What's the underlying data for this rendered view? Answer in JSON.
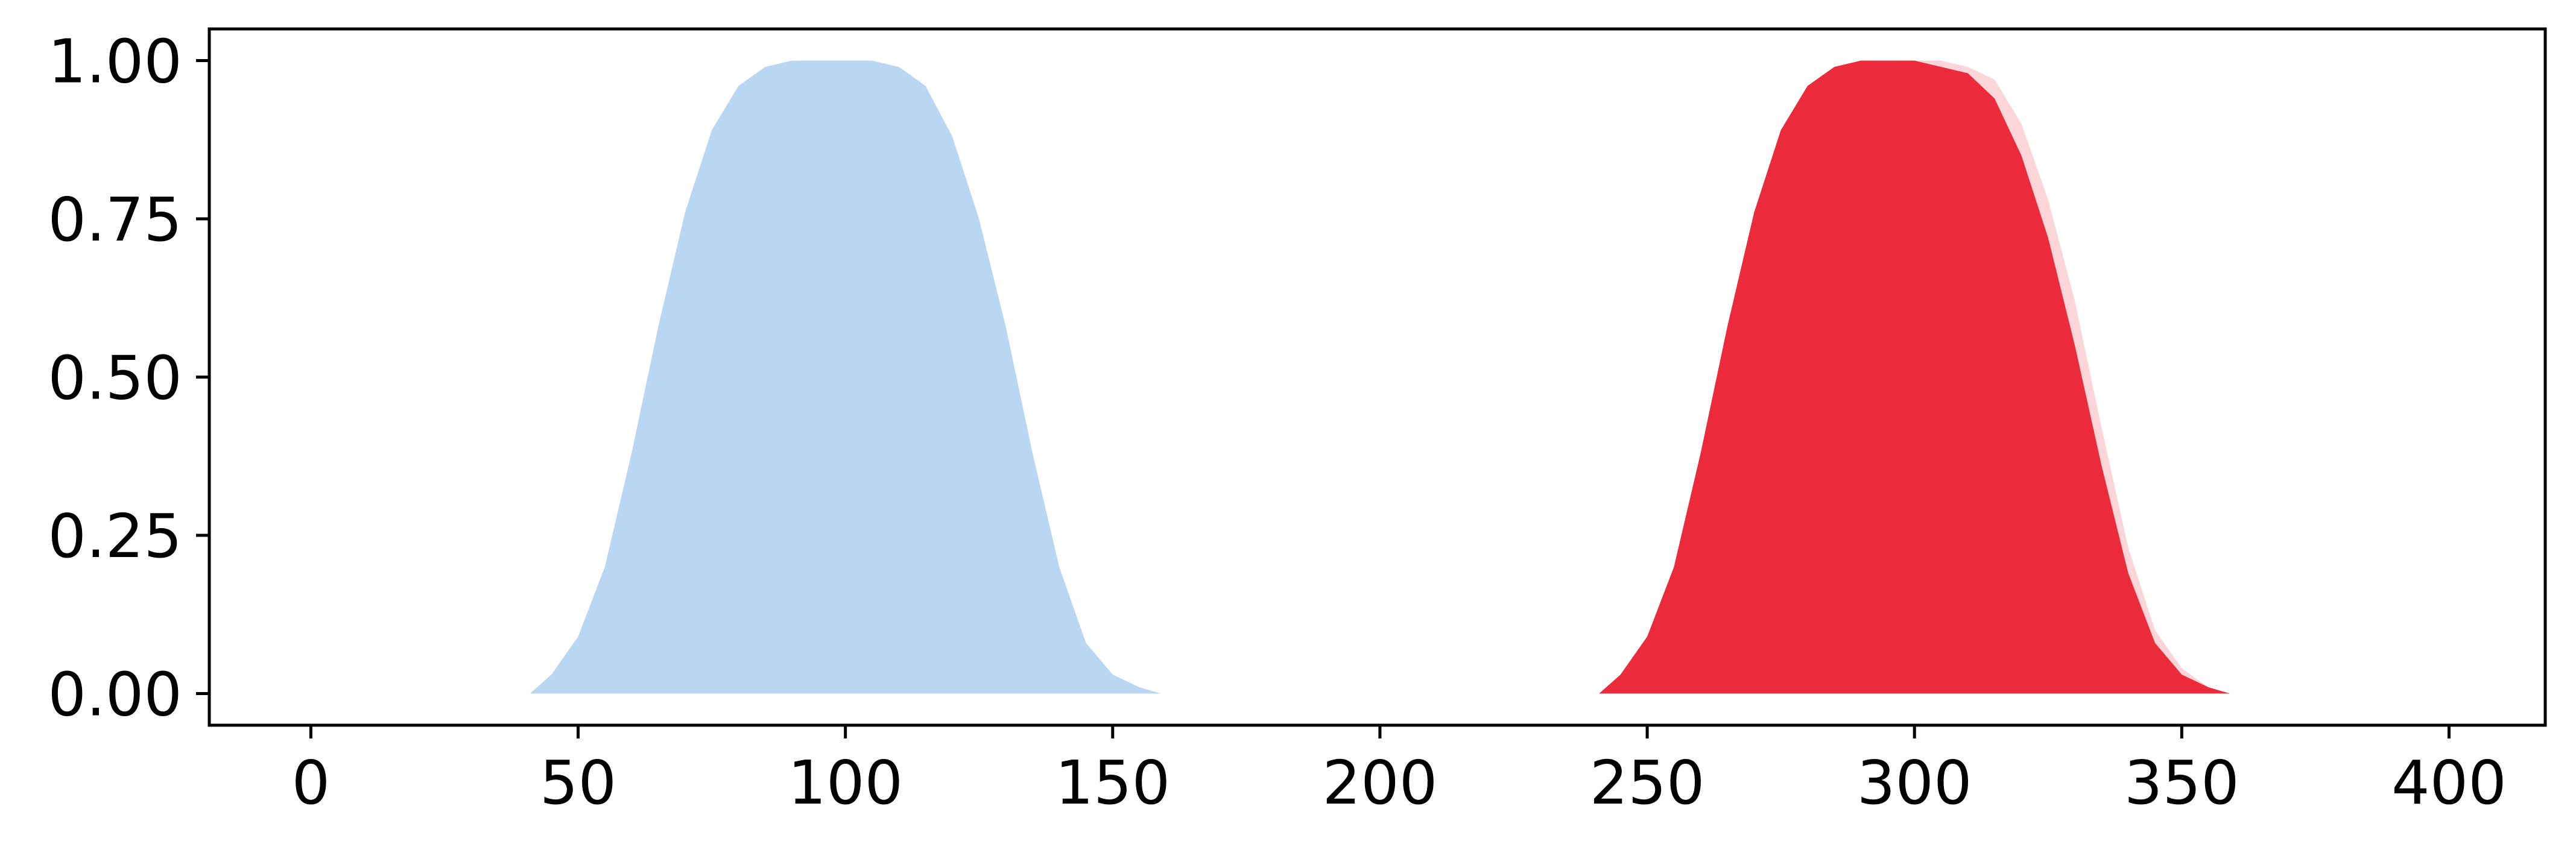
{
  "chart_data": {
    "type": "area",
    "title": "",
    "xlabel": "",
    "ylabel": "",
    "xlim": [
      -19,
      418
    ],
    "ylim": [
      -0.05,
      1.05
    ],
    "x_ticks": [
      "0",
      "50",
      "100",
      "150",
      "200",
      "250",
      "300",
      "350",
      "400"
    ],
    "y_ticks": [
      "0.00",
      "0.25",
      "0.50",
      "0.75",
      "1.00"
    ],
    "grid": false,
    "legend": "none",
    "series": [
      {
        "color": "#b9d7f3",
        "x": [
          41,
          45,
          50,
          55,
          60,
          65,
          70,
          75,
          80,
          85,
          90,
          95,
          100,
          105,
          110,
          115,
          120,
          125,
          130,
          135,
          140,
          145,
          150,
          155,
          159
        ],
        "y": [
          0.0,
          0.03,
          0.09,
          0.2,
          0.38,
          0.58,
          0.76,
          0.89,
          0.96,
          0.99,
          1.0,
          1.0,
          1.0,
          1.0,
          0.99,
          0.96,
          0.88,
          0.75,
          0.58,
          0.38,
          0.2,
          0.08,
          0.03,
          0.01,
          0.0
        ]
      },
      {
        "color": "#fcd5d8",
        "x": [
          241,
          245,
          250,
          255,
          260,
          265,
          270,
          275,
          280,
          285,
          290,
          295,
          300,
          305,
          310,
          315,
          320,
          325,
          330,
          335,
          340,
          345,
          350,
          355,
          359
        ],
        "y": [
          0.0,
          0.03,
          0.09,
          0.2,
          0.38,
          0.58,
          0.76,
          0.89,
          0.96,
          0.99,
          1.0,
          1.0,
          1.0,
          1.0,
          0.99,
          0.97,
          0.9,
          0.78,
          0.62,
          0.42,
          0.23,
          0.1,
          0.04,
          0.01,
          0.0
        ]
      },
      {
        "color": "#eb2b3b",
        "x": [
          241,
          245,
          250,
          255,
          260,
          265,
          270,
          275,
          280,
          285,
          290,
          295,
          300,
          305,
          310,
          315,
          320,
          325,
          330,
          335,
          340,
          345,
          350,
          355,
          359
        ],
        "y": [
          0.0,
          0.03,
          0.09,
          0.2,
          0.38,
          0.58,
          0.76,
          0.89,
          0.96,
          0.99,
          1.0,
          1.0,
          1.0,
          0.99,
          0.98,
          0.94,
          0.85,
          0.72,
          0.55,
          0.36,
          0.19,
          0.08,
          0.03,
          0.01,
          0.0
        ]
      }
    ]
  }
}
